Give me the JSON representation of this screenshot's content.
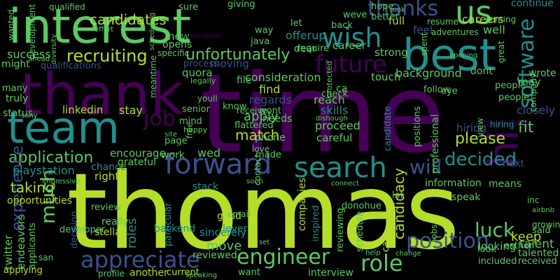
{
  "colors": {
    "background": "#000000",
    "palette": [
      "#440154",
      "#3b528b",
      "#21908d",
      "#5dc963",
      "#b5de2b",
      "#fde725"
    ]
  },
  "words": [
    "thomas",
    "time",
    "thank",
    "interest",
    "best",
    "team",
    "us",
    "wish",
    "forward",
    "search",
    "hi",
    "thanks",
    "future",
    "software",
    "application",
    "decided",
    "will",
    "role",
    "engineer",
    "appreciate",
    "luck",
    "position",
    "job",
    "recruiting",
    "unfortunately",
    "please",
    "experience",
    "taking",
    "much",
    "move",
    "keep",
    "match",
    "fit",
    "apply",
    "consideration",
    "background",
    "regards",
    "find",
    "hiring",
    "linkedin",
    "stay",
    "playstation",
    "candidates",
    "roles",
    "opportunities",
    "skills",
    "closely",
    "full",
    "careers",
    "well",
    "continue",
    "feel",
    "success",
    "qualifications",
    "moving",
    "process",
    "quora",
    "careful",
    "reach",
    "proceed",
    "needs",
    "phone",
    "page",
    "stack",
    "good",
    "sincerely",
    "lever",
    "donohue",
    "backend",
    "particular",
    "right",
    "chance",
    "review",
    "stella",
    "really",
    "developer",
    "decision",
    "twitter",
    "endeavors",
    "applicants",
    "applying",
    "another",
    "current",
    "reviewed",
    "interview",
    "companies",
    "inspired",
    "reviewing",
    "schedule",
    "call",
    "candidacy",
    "jobs",
    "looking",
    "information",
    "lot",
    "speak",
    "esther",
    "taskrabbit",
    "next",
    "talent",
    "talented",
    "received",
    "included",
    "look",
    "said",
    "growing",
    "airbnb",
    "inc",
    "means",
    "people",
    "company",
    "view",
    "professional",
    "positions",
    "candidate",
    "wrote",
    "eye",
    "dont",
    "people",
    "follow",
    "touch",
    "strong",
    "career",
    "dear",
    "offerup",
    "let",
    "back",
    "hope",
    "better",
    "weve",
    "giving",
    "sure",
    "qualified",
    "wanted",
    "effort",
    "scheduling",
    "coming",
    "took",
    "resume",
    "adventures",
    "spent",
    "opening",
    "great",
    "may",
    "senior",
    "wont",
    "receive",
    "status",
    "truly",
    "many",
    "might",
    "development",
    "diversity",
    "ahead",
    "new",
    "opens",
    "specific",
    "java",
    "require",
    "way",
    "check",
    "ca",
    "file",
    "legally",
    "youll",
    "meantime",
    "mind",
    "happy",
    "flattered",
    "protected",
    "dishough",
    "wed",
    "made",
    "love",
    "encourage",
    "work",
    "grateful",
    "free",
    "site",
    "know",
    "impressive",
    "connect",
    "soon",
    "contact",
    "email",
    "set",
    "help",
    "change",
    "san",
    "profile",
    "speaking",
    "want",
    "sony",
    "livepurpose",
    "hiring"
  ]
}
